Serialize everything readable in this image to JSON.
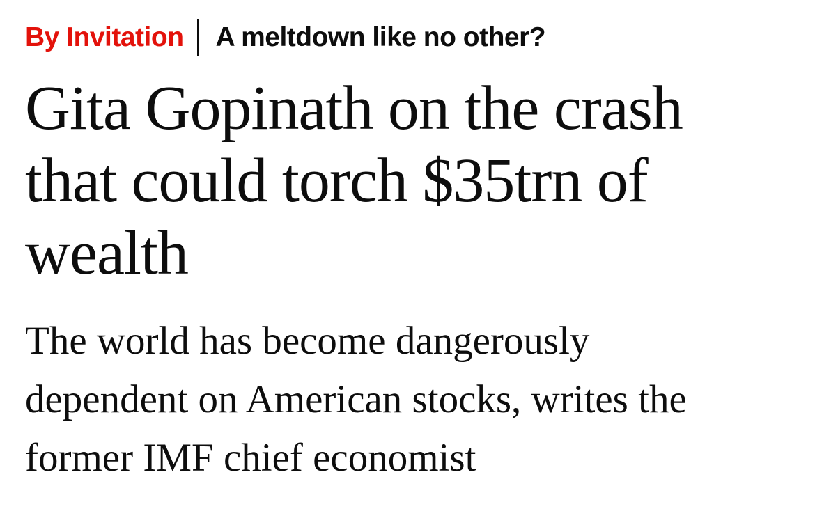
{
  "colors": {
    "accent_red": "#e3120b",
    "text": "#0d0d0d",
    "background": "#ffffff"
  },
  "kicker": {
    "section": "By Invitation",
    "separator": "|",
    "topic": "A meltdown like no other?"
  },
  "headline": {
    "text": "Gita Gopinath on the crash that could torch $35trn of wealth",
    "lines": [
      "Gita Gopinath on the crash",
      "that could torch $35trn of",
      "wealth"
    ]
  },
  "subtitle": {
    "text": "The world has become dangerously dependent on American stocks, writes the former IMF chief economist",
    "lines": [
      "The world has become dangerously",
      "dependent on American stocks, writes the",
      "former IMF chief economist"
    ]
  }
}
